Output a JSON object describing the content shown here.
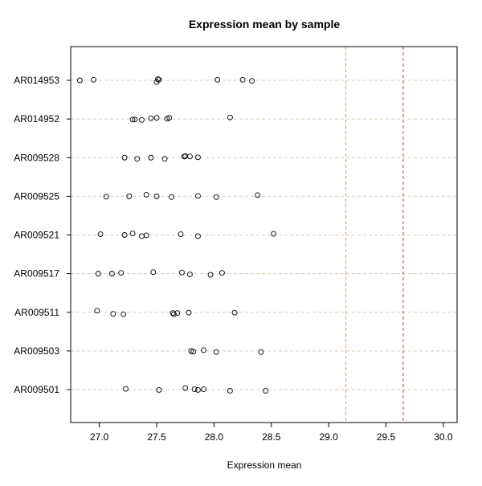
{
  "chart_data": {
    "type": "scatter",
    "title": "Expression mean by sample",
    "xlabel": "Expression mean",
    "ylabel": "",
    "xlim": [
      26.75,
      30.12
    ],
    "x_ticks": [
      27.0,
      27.5,
      28.0,
      28.5,
      29.0,
      29.5,
      30.0
    ],
    "x_tick_labels": [
      "27.0",
      "27.5",
      "28.0",
      "28.5",
      "29.0",
      "29.5",
      "30.0"
    ],
    "categories": [
      "AR014953",
      "AR014952",
      "AR009528",
      "AR009525",
      "AR009521",
      "AR009517",
      "AR009511",
      "AR009503",
      "AR009501"
    ],
    "grid": "horizontal dashed lines at each sample",
    "marker": "open circle",
    "reference_lines": [
      {
        "x": 29.15,
        "color": "#f0a030",
        "style": "dashed"
      },
      {
        "x": 29.65,
        "color": "#e0303a",
        "style": "dashed"
      }
    ],
    "series": [
      {
        "category": "AR014953",
        "points": [
          {
            "x": 26.83,
            "jitter": 0.0
          },
          {
            "x": 26.95,
            "jitter": 0.03
          },
          {
            "x": 27.5,
            "jitter": -0.08
          },
          {
            "x": 27.51,
            "jitter": 0.06
          },
          {
            "x": 27.52,
            "jitter": 0.03
          },
          {
            "x": 28.03,
            "jitter": 0.03
          },
          {
            "x": 28.25,
            "jitter": 0.03
          },
          {
            "x": 28.33,
            "jitter": -0.03
          }
        ]
      },
      {
        "category": "AR014952",
        "points": [
          {
            "x": 27.29,
            "jitter": -0.03
          },
          {
            "x": 27.31,
            "jitter": -0.03
          },
          {
            "x": 27.37,
            "jitter": -0.05
          },
          {
            "x": 27.45,
            "jitter": 0.04
          },
          {
            "x": 27.5,
            "jitter": 0.06
          },
          {
            "x": 27.59,
            "jitter": 0.02
          },
          {
            "x": 27.61,
            "jitter": 0.06
          },
          {
            "x": 28.14,
            "jitter": 0.08
          }
        ]
      },
      {
        "category": "AR009528",
        "points": [
          {
            "x": 27.22,
            "jitter": 0.0
          },
          {
            "x": 27.33,
            "jitter": -0.06
          },
          {
            "x": 27.45,
            "jitter": 0.0
          },
          {
            "x": 27.57,
            "jitter": -0.06
          },
          {
            "x": 27.74,
            "jitter": 0.06
          },
          {
            "x": 27.75,
            "jitter": 0.08
          },
          {
            "x": 27.79,
            "jitter": 0.06
          },
          {
            "x": 27.86,
            "jitter": 0.02
          }
        ]
      },
      {
        "category": "AR009525",
        "points": [
          {
            "x": 27.06,
            "jitter": -0.02
          },
          {
            "x": 27.26,
            "jitter": 0.0
          },
          {
            "x": 27.41,
            "jitter": 0.08
          },
          {
            "x": 27.5,
            "jitter": 0.0
          },
          {
            "x": 27.63,
            "jitter": -0.04
          },
          {
            "x": 27.86,
            "jitter": 0.02
          },
          {
            "x": 28.02,
            "jitter": -0.04
          },
          {
            "x": 28.38,
            "jitter": 0.06
          }
        ]
      },
      {
        "category": "AR009521",
        "points": [
          {
            "x": 27.01,
            "jitter": 0.04
          },
          {
            "x": 27.22,
            "jitter": 0.0
          },
          {
            "x": 27.29,
            "jitter": 0.08
          },
          {
            "x": 27.37,
            "jitter": -0.06
          },
          {
            "x": 27.41,
            "jitter": -0.02
          },
          {
            "x": 27.71,
            "jitter": 0.04
          },
          {
            "x": 27.86,
            "jitter": -0.06
          },
          {
            "x": 28.52,
            "jitter": 0.06
          }
        ]
      },
      {
        "category": "AR009517",
        "points": [
          {
            "x": 26.99,
            "jitter": 0.0
          },
          {
            "x": 27.11,
            "jitter": 0.0
          },
          {
            "x": 27.19,
            "jitter": 0.04
          },
          {
            "x": 27.47,
            "jitter": 0.08
          },
          {
            "x": 27.72,
            "jitter": 0.06
          },
          {
            "x": 27.79,
            "jitter": -0.04
          },
          {
            "x": 27.97,
            "jitter": -0.06
          },
          {
            "x": 28.07,
            "jitter": 0.04
          }
        ]
      },
      {
        "category": "AR009511",
        "points": [
          {
            "x": 26.98,
            "jitter": 0.08
          },
          {
            "x": 27.12,
            "jitter": -0.08
          },
          {
            "x": 27.21,
            "jitter": -0.1
          },
          {
            "x": 27.64,
            "jitter": -0.04
          },
          {
            "x": 27.65,
            "jitter": -0.1
          },
          {
            "x": 27.68,
            "jitter": -0.04
          },
          {
            "x": 27.78,
            "jitter": -0.02
          },
          {
            "x": 28.18,
            "jitter": -0.02
          }
        ]
      },
      {
        "category": "AR009503",
        "points": [
          {
            "x": 27.8,
            "jitter": 0.0
          },
          {
            "x": 27.82,
            "jitter": -0.04
          },
          {
            "x": 27.91,
            "jitter": 0.04
          },
          {
            "x": 28.02,
            "jitter": -0.06
          },
          {
            "x": 28.41,
            "jitter": -0.06
          }
        ]
      },
      {
        "category": "AR009501",
        "points": [
          {
            "x": 27.23,
            "jitter": 0.04
          },
          {
            "x": 27.52,
            "jitter": -0.02
          },
          {
            "x": 27.75,
            "jitter": 0.08
          },
          {
            "x": 27.83,
            "jitter": 0.02
          },
          {
            "x": 27.86,
            "jitter": -0.02
          },
          {
            "x": 27.91,
            "jitter": 0.02
          },
          {
            "x": 28.14,
            "jitter": -0.06
          },
          {
            "x": 28.45,
            "jitter": -0.06
          }
        ]
      }
    ]
  }
}
